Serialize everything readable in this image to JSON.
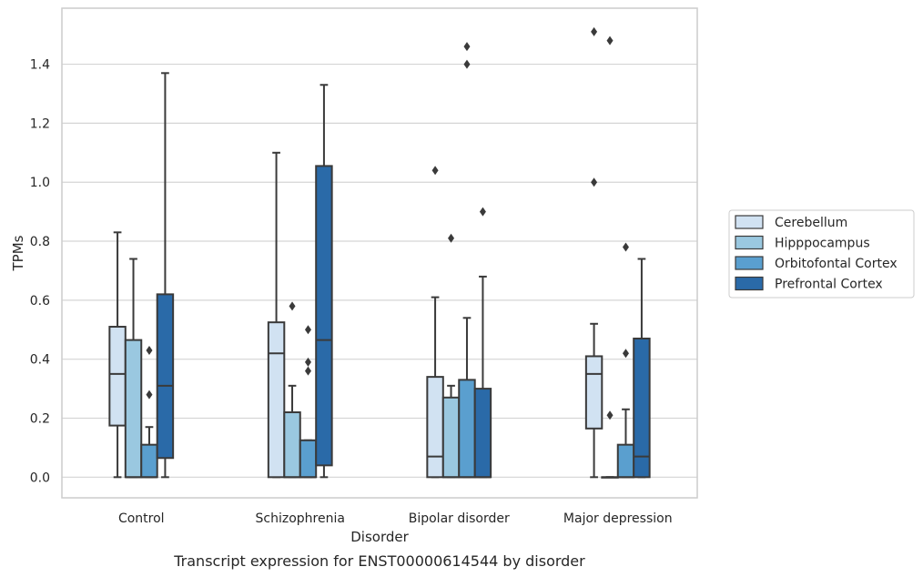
{
  "chart_data": {
    "type": "box",
    "xlabel": "Disorder",
    "ylabel": "TPMs",
    "caption": "Transcript expression for ENST00000614544 by disorder",
    "ylim": [
      -0.07,
      1.59
    ],
    "yticks": [
      "0.0",
      "0.2",
      "0.4",
      "0.6",
      "0.8",
      "1.0",
      "1.2",
      "1.4"
    ],
    "grid": "horizontal",
    "legend_position": "right",
    "categories": [
      "Control",
      "Schizophrenia",
      "Bipolar disorder",
      "Major depression"
    ],
    "series": [
      {
        "name": "Cerebellum",
        "color": "#d1e2f2",
        "boxes": [
          {
            "q1": 0.175,
            "median": 0.35,
            "q3": 0.51,
            "low": 0.0,
            "high": 0.83,
            "outliers": []
          },
          {
            "q1": 0.0,
            "median": 0.42,
            "q3": 0.525,
            "low": 0.0,
            "high": 1.1,
            "outliers": []
          },
          {
            "q1": 0.0,
            "median": 0.07,
            "q3": 0.34,
            "low": 0.0,
            "high": 0.61,
            "outliers": [
              1.04
            ]
          },
          {
            "q1": 0.165,
            "median": 0.35,
            "q3": 0.41,
            "low": 0.0,
            "high": 0.52,
            "outliers": [
              1.0,
              1.51
            ]
          }
        ]
      },
      {
        "name": "Hipppocampus",
        "color": "#9ac8e0",
        "boxes": [
          {
            "q1": 0.0,
            "median": 0.0,
            "q3": 0.465,
            "low": 0.0,
            "high": 0.74,
            "outliers": []
          },
          {
            "q1": 0.0,
            "median": 0.0,
            "q3": 0.22,
            "low": 0.0,
            "high": 0.31,
            "outliers": [
              0.58
            ]
          },
          {
            "q1": 0.0,
            "median": 0.0,
            "q3": 0.27,
            "low": 0.0,
            "high": 0.31,
            "outliers": [
              0.81
            ]
          },
          {
            "q1": 0.0,
            "median": 0.0,
            "q3": 0.0,
            "low": 0.0,
            "high": 0.0,
            "outliers": [
              0.21,
              1.48
            ]
          }
        ]
      },
      {
        "name": "Orbitofontal Cortex",
        "color": "#5a9fcf",
        "boxes": [
          {
            "q1": 0.0,
            "median": 0.0,
            "q3": 0.11,
            "low": 0.0,
            "high": 0.17,
            "outliers": [
              0.28,
              0.43
            ]
          },
          {
            "q1": 0.0,
            "median": 0.0,
            "q3": 0.125,
            "low": 0.0,
            "high": 0.125,
            "outliers": [
              0.36,
              0.39,
              0.5
            ]
          },
          {
            "q1": 0.0,
            "median": 0.0,
            "q3": 0.33,
            "low": 0.0,
            "high": 0.54,
            "outliers": [
              1.4,
              1.46
            ]
          },
          {
            "q1": 0.0,
            "median": 0.0,
            "q3": 0.11,
            "low": 0.0,
            "high": 0.23,
            "outliers": [
              0.42,
              0.78
            ]
          }
        ]
      },
      {
        "name": "Prefrontal Cortex",
        "color": "#2a6aa8",
        "boxes": [
          {
            "q1": 0.065,
            "median": 0.31,
            "q3": 0.62,
            "low": 0.0,
            "high": 1.37,
            "outliers": []
          },
          {
            "q1": 0.04,
            "median": 0.465,
            "q3": 1.055,
            "low": 0.0,
            "high": 1.33,
            "outliers": []
          },
          {
            "q1": 0.0,
            "median": 0.0,
            "q3": 0.3,
            "low": 0.0,
            "high": 0.68,
            "outliers": [
              0.9
            ]
          },
          {
            "q1": 0.0,
            "median": 0.07,
            "q3": 0.47,
            "low": 0.0,
            "high": 0.74,
            "outliers": []
          }
        ]
      }
    ]
  }
}
